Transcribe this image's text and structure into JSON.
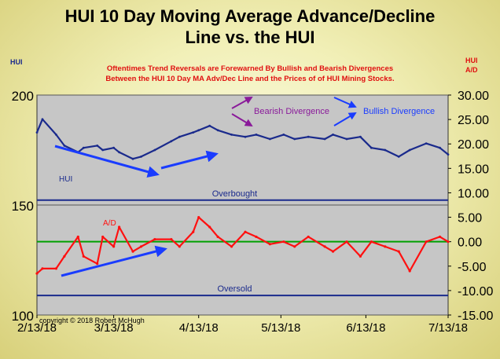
{
  "title_line1": "HUI 10 Day Moving Average Advance/Decline",
  "title_line2": "Line vs. the HUI",
  "subtitle_line1": "Oftentimes Trend Reversals are Forewarned By Bullish and Bearish Divergences",
  "subtitle_line2": "Between the HUI 10 Day MA Adv/Dec Line and the Prices of of HUI Mining Stocks.",
  "left_axis_label": "HUI",
  "right_axis_label_1": "HUI",
  "right_axis_label_2": "A/D",
  "copyright": "copyright © 2018 Robert McHugh",
  "colors": {
    "plot_bg": "#c6c6c6",
    "hui_line": "#1a2a8c",
    "ad_line": "#ff1010",
    "zero_line": "#00a000",
    "level_line": "#1a2a8c",
    "arrow_blue": "#1a3cff",
    "arrow_purple": "#8a1a9a"
  },
  "chart_data": {
    "type": "line",
    "x_ticks": [
      "2/13/18",
      "3/13/18",
      "4/13/18",
      "5/13/18",
      "6/13/18",
      "7/13/18"
    ],
    "left_axis": {
      "ticks": [
        100,
        150,
        200
      ],
      "ylim": [
        100,
        200
      ]
    },
    "right_axis": {
      "ticks": [
        "30.00",
        "25.00",
        "20.00",
        "15.00",
        "10.00",
        "5.00",
        "0.00",
        "-5.00",
        "-10.00",
        "-15.00"
      ],
      "tick_values": [
        30,
        25,
        20,
        15,
        10,
        5,
        0,
        -5,
        -10,
        -15
      ],
      "ylim": [
        -15,
        30
      ]
    },
    "hui_series": {
      "name": "HUI",
      "x": [
        "2/13/18",
        "2/15/18",
        "2/20/18",
        "2/23/18",
        "2/28/18",
        "3/2/18",
        "3/7/18",
        "3/9/18",
        "3/13/18",
        "3/15/18",
        "3/20/18",
        "3/23/18",
        "3/28/18",
        "4/3/18",
        "4/6/18",
        "4/11/18",
        "4/13/18",
        "4/17/18",
        "4/20/18",
        "4/25/18",
        "4/30/18",
        "5/4/18",
        "5/9/18",
        "5/14/18",
        "5/18/18",
        "5/23/18",
        "5/29/18",
        "6/1/18",
        "6/6/18",
        "6/11/18",
        "6/15/18",
        "6/20/18",
        "6/25/18",
        "6/29/18",
        "7/5/18",
        "7/10/18",
        "7/13/18"
      ],
      "values": [
        183,
        189,
        182,
        177,
        174,
        176,
        177,
        175,
        176,
        174,
        171,
        172,
        175,
        179,
        181,
        183,
        184,
        186,
        184,
        182,
        181,
        182,
        180,
        182,
        180,
        181,
        180,
        182,
        180,
        181,
        176,
        175,
        172,
        175,
        178,
        176,
        173
      ]
    },
    "ad_series": {
      "name": "A/D",
      "x": [
        "2/13/18",
        "2/15/18",
        "2/20/18",
        "2/23/18",
        "2/28/18",
        "3/2/18",
        "3/7/18",
        "3/9/18",
        "3/13/18",
        "3/15/18",
        "3/20/18",
        "3/23/18",
        "3/28/18",
        "4/3/18",
        "4/6/18",
        "4/11/18",
        "4/13/18",
        "4/17/18",
        "4/20/18",
        "4/25/18",
        "4/30/18",
        "5/4/18",
        "5/9/18",
        "5/14/18",
        "5/18/18",
        "5/23/18",
        "5/29/18",
        "6/1/18",
        "6/6/18",
        "6/11/18",
        "6/15/18",
        "6/20/18",
        "6/25/18",
        "6/29/18",
        "7/5/18",
        "7/10/18",
        "7/13/18"
      ],
      "values": [
        -6.5,
        -5.5,
        -5.5,
        -3,
        1,
        -3,
        -4.5,
        1,
        -1,
        3,
        -2,
        -1,
        0.5,
        0.5,
        -1,
        2,
        5,
        3,
        1,
        -1,
        2,
        1,
        -0.5,
        0,
        -1,
        1,
        -1,
        -2,
        0,
        -3,
        0,
        -1,
        -2,
        -6,
        0,
        1,
        0
      ]
    },
    "levels": [
      {
        "label": "Overbought",
        "value": 8.5
      },
      {
        "label": "Oversold",
        "value": -11
      }
    ],
    "annotations": [
      {
        "label": "Bearish Divergence"
      },
      {
        "label": "Bullish Divergence"
      }
    ]
  }
}
